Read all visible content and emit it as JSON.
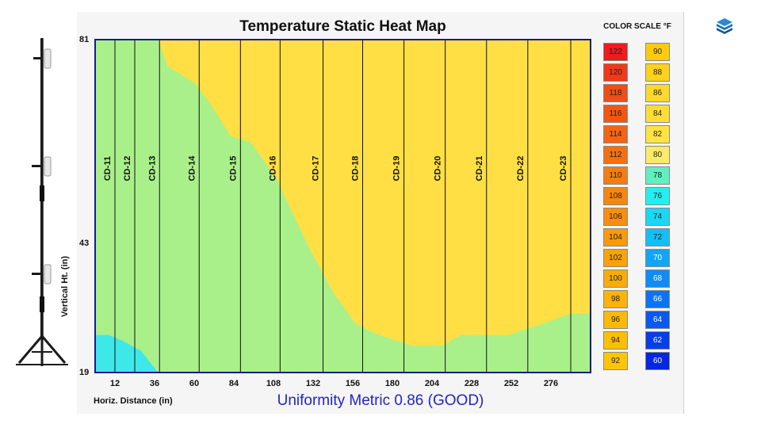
{
  "chart_data": {
    "type": "heatmap",
    "title": "Temperature Static Heat Map",
    "xlabel": "Horiz. Distance (in)",
    "ylabel": "Vertical Ht. (in)",
    "xlim": [
      0,
      300
    ],
    "ylim": [
      19,
      81
    ],
    "x_ticks": [
      "12",
      "36",
      "60",
      "84",
      "108",
      "132",
      "156",
      "180",
      "204",
      "228",
      "252",
      "276"
    ],
    "x_tick_values": [
      12,
      36,
      60,
      84,
      108,
      132,
      156,
      180,
      204,
      228,
      252,
      276
    ],
    "y_ticks": [
      "81",
      "43",
      "19"
    ],
    "y_tick_values": [
      81,
      43,
      19
    ],
    "sensors": [
      {
        "label": "CD-11",
        "x": 12
      },
      {
        "label": "CD-12",
        "x": 24
      },
      {
        "label": "CD-13",
        "x": 39
      },
      {
        "label": "CD-14",
        "x": 63
      },
      {
        "label": "CD-15",
        "x": 88
      },
      {
        "label": "CD-16",
        "x": 112
      },
      {
        "label": "CD-17",
        "x": 138
      },
      {
        "label": "CD-18",
        "x": 162
      },
      {
        "label": "CD-19",
        "x": 187
      },
      {
        "label": "CD-20",
        "x": 212
      },
      {
        "label": "CD-21",
        "x": 237
      },
      {
        "label": "CD-22",
        "x": 262
      },
      {
        "label": "CD-23",
        "x": 288
      }
    ],
    "regions": [
      {
        "color": "#a9f08a",
        "temp_f": 78,
        "boundary_top": [
          [
            0,
            81
          ],
          [
            38,
            81
          ],
          [
            44,
            76
          ],
          [
            60,
            73
          ],
          [
            70,
            69
          ],
          [
            82,
            63
          ],
          [
            94,
            62
          ],
          [
            110,
            55
          ],
          [
            116,
            51
          ],
          [
            130,
            42
          ],
          [
            144,
            34
          ],
          [
            158,
            28
          ],
          [
            172,
            26
          ],
          [
            192,
            24
          ],
          [
            210,
            24
          ],
          [
            222,
            26
          ],
          [
            250,
            26
          ],
          [
            270,
            28
          ],
          [
            288,
            30
          ],
          [
            288,
            19
          ],
          [
            0,
            19
          ]
        ]
      },
      {
        "color": "#ffdf44",
        "temp_f": 82,
        "boundary_bottom": [
          [
            38,
            81
          ],
          [
            44,
            76
          ],
          [
            60,
            73
          ],
          [
            70,
            69
          ],
          [
            82,
            63
          ],
          [
            94,
            62
          ],
          [
            110,
            55
          ],
          [
            116,
            51
          ],
          [
            130,
            42
          ],
          [
            144,
            34
          ],
          [
            158,
            28
          ],
          [
            172,
            26
          ],
          [
            192,
            24
          ],
          [
            210,
            24
          ],
          [
            222,
            26
          ],
          [
            250,
            26
          ],
          [
            270,
            28
          ],
          [
            288,
            30
          ]
        ]
      },
      {
        "color": "#3fe8e8",
        "temp_f": 76,
        "boundary": [
          [
            0,
            19
          ],
          [
            0,
            26
          ],
          [
            8,
            26
          ],
          [
            16,
            25
          ],
          [
            28,
            23
          ],
          [
            38,
            19
          ]
        ]
      }
    ],
    "color_scale_title": "COLOR SCALE °F",
    "color_scale": [
      {
        "value": "122",
        "color": "#ee1c1c"
      },
      {
        "value": "120",
        "color": "#f0381a"
      },
      {
        "value": "118",
        "color": "#f24b16"
      },
      {
        "value": "116",
        "color": "#f35613"
      },
      {
        "value": "114",
        "color": "#f46412"
      },
      {
        "value": "112",
        "color": "#f56e10"
      },
      {
        "value": "110",
        "color": "#f67c0f"
      },
      {
        "value": "108",
        "color": "#f7860e"
      },
      {
        "value": "106",
        "color": "#f88f0c"
      },
      {
        "value": "104",
        "color": "#f9990b"
      },
      {
        "value": "102",
        "color": "#faa20a"
      },
      {
        "value": "100",
        "color": "#fbab08"
      },
      {
        "value": "98",
        "color": "#fbb307"
      },
      {
        "value": "96",
        "color": "#fcb905"
      },
      {
        "value": "94",
        "color": "#fcbf04"
      },
      {
        "value": "92",
        "color": "#fdc503"
      },
      {
        "value": "90",
        "color": "#fdcb0a"
      },
      {
        "value": "88",
        "color": "#fed11a"
      },
      {
        "value": "86",
        "color": "#fed82a"
      },
      {
        "value": "84",
        "color": "#fedd36"
      },
      {
        "value": "82",
        "color": "#ffe244"
      },
      {
        "value": "80",
        "color": "#ffe96a"
      },
      {
        "value": "78",
        "color": "#5ff0c0"
      },
      {
        "value": "76",
        "color": "#22f0f0"
      },
      {
        "value": "74",
        "color": "#1ad8f4"
      },
      {
        "value": "72",
        "color": "#14bff6"
      },
      {
        "value": "70",
        "color": "#10a6f8"
      },
      {
        "value": "68",
        "color": "#0e8cf8"
      },
      {
        "value": "66",
        "color": "#0c72f8"
      },
      {
        "value": "64",
        "color": "#0a58f0"
      },
      {
        "value": "62",
        "color": "#083ee8"
      },
      {
        "value": "60",
        "color": "#0626e0"
      }
    ],
    "uniformity_metric": "Uniformity Metric 0.86 (GOOD)"
  },
  "colors": {
    "plot_border": "#1a1a8c",
    "sensor_line": "#111111",
    "metric_text": "#2323c8"
  },
  "icons": [
    "sensor-tree-image",
    "brand-logo-icon"
  ]
}
